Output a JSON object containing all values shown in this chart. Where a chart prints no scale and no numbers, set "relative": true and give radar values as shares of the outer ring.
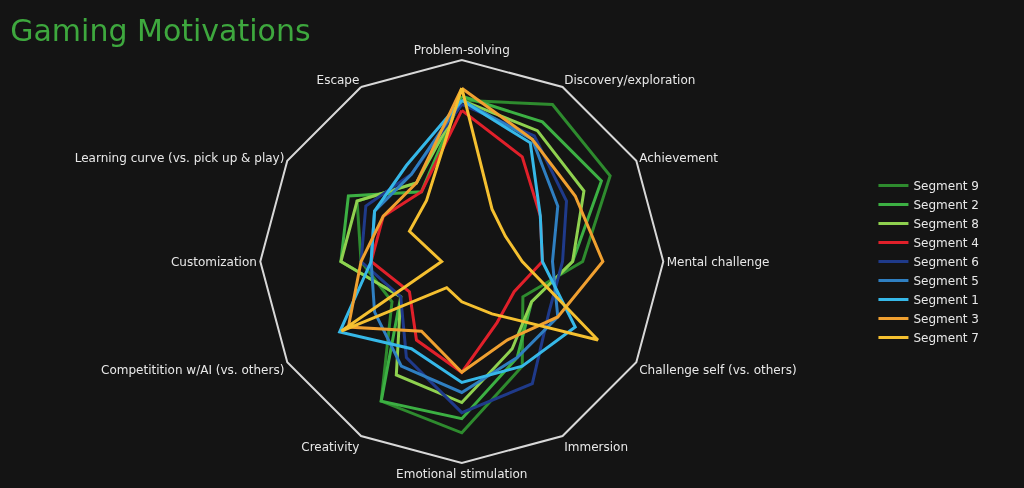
{
  "chart_data": {
    "type": "radar",
    "title": "Gaming Motivations",
    "relative": true,
    "legend": "right",
    "grid": false,
    "categories": [
      "Problem-solving",
      "Discovery/exploration",
      "Achievement",
      "Mental challenge",
      "Challenge self (vs. others)",
      "Immersion",
      "Emotional stimulation",
      "Creativity",
      "Competitition w/AI (vs. others)",
      "Customization",
      "Learning curve (vs. pick up & play)",
      "Escape"
    ],
    "series": [
      {
        "name": "Segment 9",
        "color": "#2e8b2e",
        "values": [
          0.8,
          0.9,
          0.85,
          0.6,
          0.35,
          0.6,
          0.85,
          0.8,
          0.4,
          0.5,
          0.6,
          0.45
        ]
      },
      {
        "name": "Segment 2",
        "color": "#3cb043",
        "values": [
          0.82,
          0.8,
          0.8,
          0.55,
          0.4,
          0.55,
          0.78,
          0.8,
          0.35,
          0.6,
          0.65,
          0.4
        ]
      },
      {
        "name": "Segment 8",
        "color": "#8fd14f",
        "values": [
          0.8,
          0.75,
          0.7,
          0.55,
          0.4,
          0.5,
          0.7,
          0.65,
          0.35,
          0.6,
          0.6,
          0.45
        ]
      },
      {
        "name": "Segment 4",
        "color": "#e0202a",
        "values": [
          0.75,
          0.6,
          0.45,
          0.4,
          0.3,
          0.35,
          0.55,
          0.45,
          0.3,
          0.45,
          0.45,
          0.4
        ]
      },
      {
        "name": "Segment 6",
        "color": "#1f3a8a",
        "values": [
          0.78,
          0.72,
          0.6,
          0.5,
          0.5,
          0.7,
          0.75,
          0.55,
          0.35,
          0.5,
          0.55,
          0.5
        ]
      },
      {
        "name": "Segment 5",
        "color": "#2f7fc1",
        "values": [
          0.8,
          0.7,
          0.55,
          0.45,
          0.55,
          0.55,
          0.65,
          0.6,
          0.5,
          0.45,
          0.5,
          0.5
        ]
      },
      {
        "name": "Segment 1",
        "color": "#36b8e8",
        "values": [
          0.8,
          0.68,
          0.45,
          0.4,
          0.65,
          0.6,
          0.6,
          0.5,
          0.7,
          0.45,
          0.5,
          0.55
        ]
      },
      {
        "name": "Segment 3",
        "color": "#f0a030",
        "values": [
          0.86,
          0.7,
          0.65,
          0.7,
          0.55,
          0.45,
          0.55,
          0.4,
          0.65,
          0.5,
          0.45,
          0.45
        ]
      },
      {
        "name": "Segment 7",
        "color": "#f5c030",
        "values": [
          0.86,
          0.3,
          0.25,
          0.3,
          0.78,
          0.3,
          0.2,
          0.15,
          0.69,
          0.1,
          0.3,
          0.35
        ]
      }
    ]
  }
}
